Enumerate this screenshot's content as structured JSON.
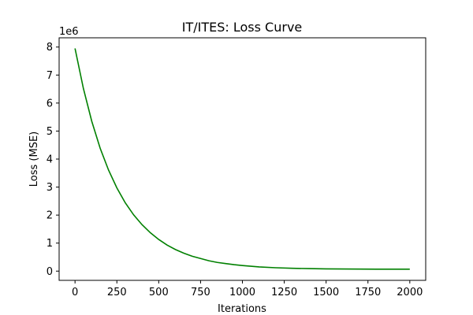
{
  "chart_data": {
    "type": "line",
    "title": "IT/ITES: Loss Curve",
    "xlabel": "Iterations",
    "ylabel": "Loss (MSE)",
    "y_offset_label": "1e6",
    "xlim": [
      -95,
      2095
    ],
    "ylim": [
      -0.33,
      8.33
    ],
    "xticks": [
      0,
      250,
      500,
      750,
      1000,
      1250,
      1500,
      1750,
      2000
    ],
    "yticks": [
      0,
      1,
      2,
      3,
      4,
      5,
      6,
      7,
      8
    ],
    "grid": false,
    "line_color": "#008000",
    "series": [
      {
        "x": [
          0,
          50,
          100,
          150,
          200,
          250,
          300,
          350,
          400,
          450,
          500,
          550,
          600,
          650,
          700,
          750,
          800,
          850,
          900,
          950,
          1000,
          1100,
          1200,
          1300,
          1400,
          1500,
          1600,
          1700,
          1800,
          1900,
          2000
        ],
        "values": [
          7.95,
          6.52,
          5.35,
          4.39,
          3.61,
          2.97,
          2.44,
          2.01,
          1.66,
          1.37,
          1.13,
          0.93,
          0.77,
          0.64,
          0.53,
          0.45,
          0.37,
          0.31,
          0.27,
          0.23,
          0.2,
          0.15,
          0.12,
          0.1,
          0.09,
          0.08,
          0.075,
          0.072,
          0.07,
          0.07,
          0.07
        ]
      }
    ]
  }
}
